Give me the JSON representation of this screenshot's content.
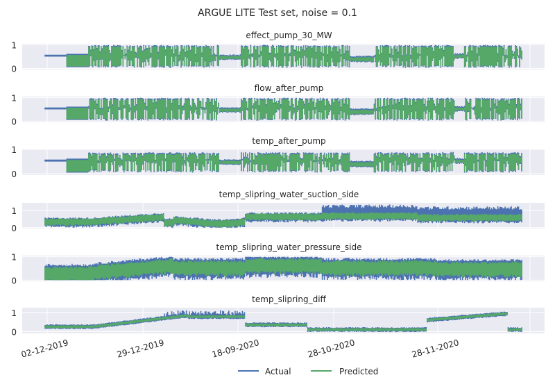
{
  "figure": {
    "title": "ARGUE LITE Test set, noise = 0.1"
  },
  "legend": {
    "placement": "bottom-center",
    "items": [
      {
        "label": "Actual",
        "color": "#4c72b0"
      },
      {
        "label": "Predicted",
        "color": "#55a868"
      }
    ]
  },
  "colors": {
    "axes_bg": "#eaeaf2",
    "grid": "#ffffff",
    "actual": "#4c72b0",
    "predicted": "#55a868"
  },
  "x_ticks": [
    "02-12-2019",
    "29-12-2019",
    "18-09-2020",
    "28-10-2020",
    "28-11-2020"
  ],
  "chart_data": [
    {
      "type": "line",
      "title": "effect_pump_30_MW",
      "ylim": [
        -0.05,
        1.05
      ],
      "yticks": [
        "1",
        "0"
      ],
      "grid": true,
      "series": [
        {
          "name": "Actual"
        },
        {
          "name": "Predicted"
        }
      ]
    },
    {
      "type": "line",
      "title": "flow_after_pump",
      "ylim": [
        -0.05,
        1.05
      ],
      "yticks": [
        "1",
        "0"
      ],
      "grid": true,
      "series": [
        {
          "name": "Actual"
        },
        {
          "name": "Predicted"
        }
      ]
    },
    {
      "type": "line",
      "title": "temp_after_pump",
      "ylim": [
        -0.05,
        1.0
      ],
      "yticks": [
        "1",
        "0"
      ],
      "grid": true,
      "series": [
        {
          "name": "Actual"
        },
        {
          "name": "Predicted"
        }
      ]
    },
    {
      "type": "line",
      "title": "temp_slipring_water_suction_side",
      "ylim": [
        -0.05,
        1.45
      ],
      "yticks": [
        "1",
        "0"
      ],
      "grid": true,
      "series": [
        {
          "name": "Actual"
        },
        {
          "name": "Predicted"
        }
      ]
    },
    {
      "type": "line",
      "title": "temp_slipring_water_pressure_side",
      "ylim": [
        -0.05,
        1.05
      ],
      "yticks": [
        "1",
        "0"
      ],
      "grid": true,
      "series": [
        {
          "name": "Actual"
        },
        {
          "name": "Predicted"
        }
      ]
    },
    {
      "type": "line",
      "title": "temp_slipring_diff",
      "ylim": [
        -0.1,
        1.25
      ],
      "yticks": [
        "1",
        "0"
      ],
      "grid": true,
      "series": [
        {
          "name": "Actual"
        },
        {
          "name": "Predicted"
        }
      ]
    }
  ]
}
